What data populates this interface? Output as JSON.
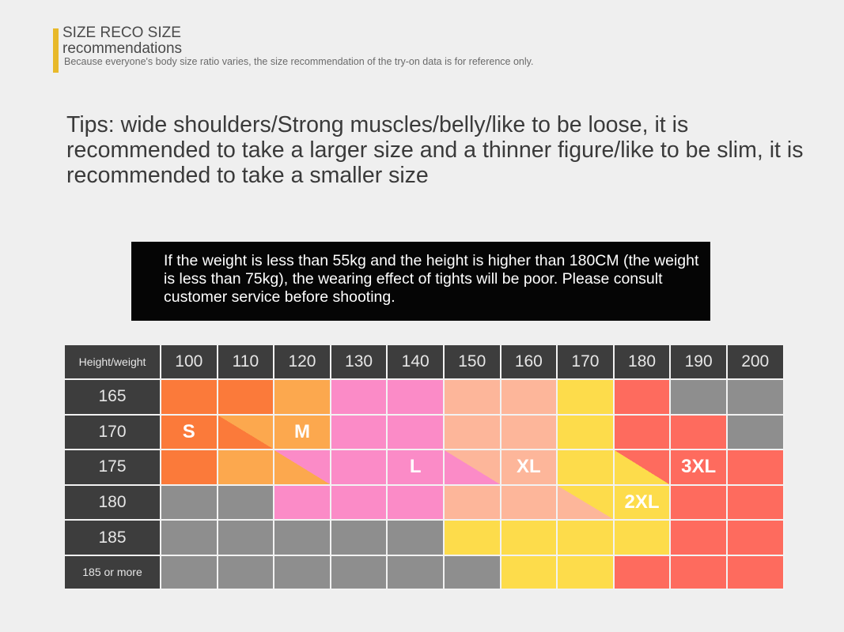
{
  "header": {
    "title_line1": "SIZE RECO SIZE",
    "title_line2": "recommendations",
    "subtitle": "Because everyone's body size ratio varies, the size recommendation of the try-on data is for reference only."
  },
  "tips": "Tips: wide shoulders/Strong muscles/belly/like to be loose, it is recommended to take a larger size and a thinner figure/like to be slim, it is recommended to take a smaller size",
  "notice": "If the weight is less than 55kg and the height is higher than 180CM (the weight is less than 75kg), the wearing effect of tights will be poor. Please consult customer service before shooting.",
  "colors": {
    "O": "#fb7a3a",
    "A": "#fca84e",
    "P": "#fb8bc7",
    "K": "#fdb69a",
    "Y": "#fddc4b",
    "R": "#fe6b5e",
    "G": "#8e8e8e",
    "accent": "#e8b92a"
  },
  "table": {
    "corner": "Height/weight",
    "weights": [
      "100",
      "110",
      "120",
      "130",
      "140",
      "150",
      "160",
      "170",
      "180",
      "190",
      "200"
    ],
    "rows": [
      {
        "height": "165",
        "cells": [
          "O",
          "O",
          "A",
          "P",
          "P",
          "K",
          "K",
          "Y",
          "R",
          "G",
          "G"
        ]
      },
      {
        "height": "170",
        "cells": [
          "O",
          "O/A",
          "A",
          "P",
          "P",
          "K",
          "K",
          "Y",
          "R",
          "R",
          "G"
        ]
      },
      {
        "height": "175",
        "cells": [
          "O",
          "A",
          "A/P",
          "P",
          "P",
          "P/K",
          "K",
          "Y",
          "Y/R",
          "R",
          "R"
        ]
      },
      {
        "height": "180",
        "cells": [
          "G",
          "G",
          "P",
          "P",
          "P",
          "K",
          "K",
          "K/Y",
          "Y",
          "R",
          "R"
        ]
      },
      {
        "height": "185",
        "cells": [
          "G",
          "G",
          "G",
          "G",
          "G",
          "Y",
          "Y",
          "Y",
          "Y",
          "R",
          "R"
        ]
      },
      {
        "height": "185 or more",
        "cells": [
          "G",
          "G",
          "G",
          "G",
          "G",
          "G",
          "Y",
          "Y",
          "R",
          "R",
          "R"
        ]
      }
    ],
    "size_labels": [
      {
        "label": "S",
        "row": 1,
        "col": 0
      },
      {
        "label": "M",
        "row": 1,
        "col": 2
      },
      {
        "label": "L",
        "row": 2,
        "col": 4
      },
      {
        "label": "XL",
        "row": 2,
        "col": 6
      },
      {
        "label": "3XL",
        "row": 2,
        "col": 9
      },
      {
        "label": "2XL",
        "row": 3,
        "col": 8
      }
    ]
  }
}
